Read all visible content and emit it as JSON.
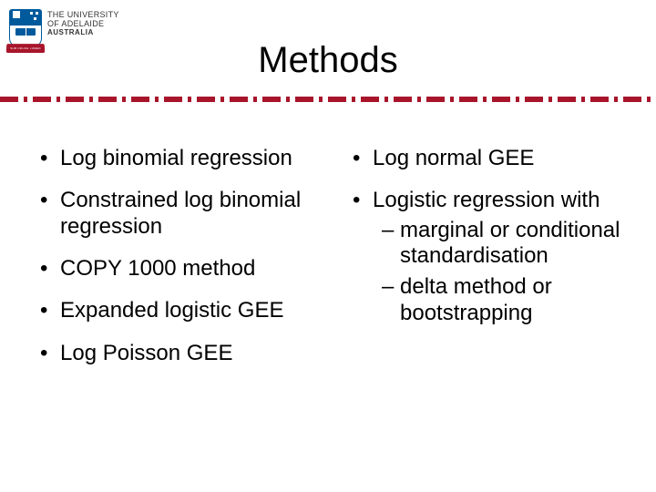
{
  "logo": {
    "line1": "THE UNIVERSITY",
    "line2": "OF ADELAIDE",
    "line3": "AUSTRALIA",
    "banner": "SUB CRUCE LUMEN"
  },
  "title": "Methods",
  "divider_color": "#a8152b",
  "text_color": "#000000",
  "background_color": "#ffffff",
  "title_fontsize": 40,
  "body_fontsize": 24,
  "columns": {
    "left": [
      "Log binomial regression",
      "Constrained log binomial regression",
      "COPY 1000 method",
      "Expanded logistic GEE",
      "Log Poisson GEE"
    ],
    "right": [
      {
        "text": "Log normal GEE",
        "sub": []
      },
      {
        "text": "Logistic regression with",
        "sub": [
          "marginal or conditional standardisation",
          "delta method or bootstrapping"
        ]
      }
    ]
  }
}
